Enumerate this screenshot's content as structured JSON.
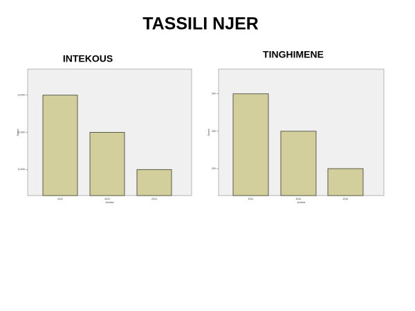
{
  "title": "TASSILI NJER",
  "chart_data": [
    {
      "type": "bar",
      "title": "INTEKOUS",
      "xlabel": "Années",
      "ylabel": "Doses",
      "categories": [
        "2012",
        "2013",
        "2014"
      ],
      "values": [
        13000,
        12000,
        11000
      ],
      "color": "#d3cf9c",
      "ylim": [
        10300,
        13700
      ],
      "yticks": [
        {
          "value": 11000,
          "label": "11,000"
        },
        {
          "value": 12000,
          "label": "12,000"
        },
        {
          "value": 13000,
          "label": "13,000"
        }
      ]
    },
    {
      "type": "bar",
      "title": "TINGHIMENE",
      "xlabel": "Années",
      "ylabel": "Doses",
      "categories": [
        "2012",
        "2013",
        "2014"
      ],
      "values": [
        300,
        250,
        200
      ],
      "color": "#d3cf9c",
      "ylim": [
        164,
        333
      ],
      "yticks": [
        200,
        250,
        300
      ]
    }
  ]
}
